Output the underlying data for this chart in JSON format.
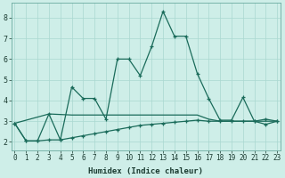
{
  "xlabel": "Humidex (Indice chaleur)",
  "bg_color": "#ceeee8",
  "line_color": "#1a6b5a",
  "grid_color": "#aad8d0",
  "x_ticks": [
    0,
    1,
    2,
    3,
    4,
    5,
    6,
    7,
    8,
    9,
    10,
    11,
    12,
    13,
    14,
    15,
    16,
    17,
    18,
    19,
    20,
    21,
    22,
    23
  ],
  "y_ticks": [
    2,
    3,
    4,
    5,
    6,
    7,
    8
  ],
  "ylim": [
    1.6,
    8.7
  ],
  "xlim": [
    -0.3,
    23.3
  ],
  "series1_x": [
    0,
    1,
    2,
    3,
    4,
    5,
    6,
    7,
    8,
    9,
    10,
    11,
    12,
    13,
    14,
    15,
    16,
    17,
    18,
    19,
    20,
    21,
    22,
    23
  ],
  "series1_y": [
    2.9,
    2.05,
    2.05,
    3.35,
    2.1,
    4.65,
    4.1,
    4.1,
    3.1,
    6.0,
    6.0,
    5.2,
    6.6,
    8.3,
    7.1,
    7.1,
    5.3,
    4.1,
    3.05,
    3.05,
    4.15,
    3.0,
    3.1,
    3.0
  ],
  "series2_x": [
    0,
    3,
    5,
    6,
    7,
    8,
    9,
    10,
    11,
    12,
    13,
    14,
    15,
    16,
    17,
    18,
    19,
    20,
    21,
    22,
    23
  ],
  "series2_y": [
    2.9,
    3.35,
    3.3,
    3.3,
    3.3,
    3.3,
    3.3,
    3.3,
    3.3,
    3.3,
    3.3,
    3.3,
    3.3,
    3.3,
    3.1,
    3.0,
    3.0,
    3.0,
    3.0,
    3.0,
    3.0
  ],
  "series3_x": [
    0,
    1,
    2,
    3,
    4,
    5,
    6,
    7,
    8,
    9,
    10,
    11,
    12,
    13,
    14,
    15,
    16,
    17,
    18,
    19,
    20,
    21,
    22,
    23
  ],
  "series3_y": [
    2.9,
    2.05,
    2.05,
    2.1,
    2.1,
    2.2,
    2.3,
    2.4,
    2.5,
    2.6,
    2.7,
    2.8,
    2.85,
    2.9,
    2.95,
    3.0,
    3.05,
    3.0,
    3.0,
    3.0,
    3.0,
    3.0,
    2.85,
    3.0
  ],
  "tick_fontsize": 5.5,
  "xlabel_fontsize": 6.5
}
